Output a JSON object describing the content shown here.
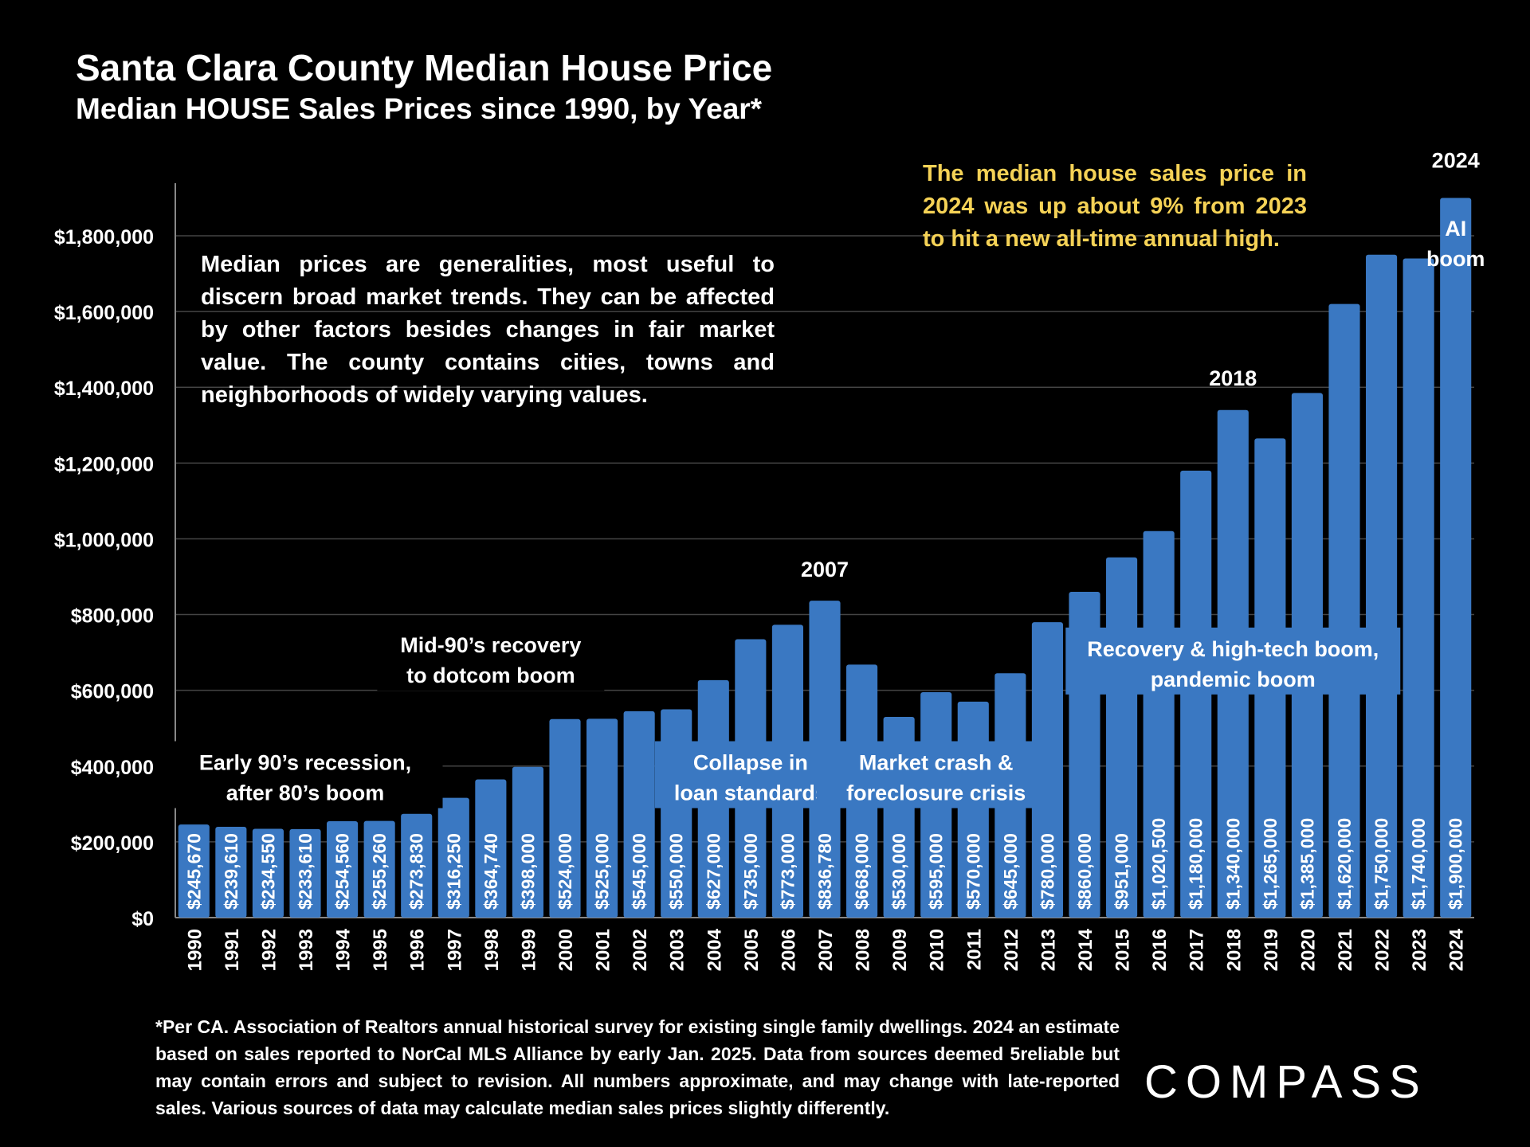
{
  "header": {
    "title": "Santa Clara County Median House Price",
    "subtitle": "Median HOUSE Sales Prices since 1990, by Year*"
  },
  "note": "Median prices are generalities, most useful to discern broad market trends. They can be affected by other factors besides changes in fair market value. The county contains cities, towns and neighborhoods of widely varying values.",
  "highlight": "The median house sales price in 2024 was up about 9% from 2023 to hit a new all-time annual high.",
  "footnote": "*Per CA. Association of Realtors annual historical survey for existing single family dwellings. 2024 an estimate based on sales reported to NorCal MLS Alliance by early Jan. 2025. Data from sources deemed 5reliable but may contain errors and subject to revision. All numbers approximate, and may change with late-reported sales. Various sources of data may calculate median sales prices slightly differently.",
  "logo": "COMPASS",
  "colors": {
    "bar": "#3a78c2",
    "highlight": "#f5d256",
    "background": "#000000",
    "grid": "#444444"
  },
  "chart_data": {
    "type": "bar",
    "title": "Santa Clara County Median House Price",
    "ylim": [
      0,
      1900000
    ],
    "yticks": [
      "$0",
      "$200,000",
      "$400,000",
      "$600,000",
      "$800,000",
      "$1,000,000",
      "$1,200,000",
      "$1,400,000",
      "$1,600,000",
      "$1,800,000"
    ],
    "ytick_values": [
      0,
      200000,
      400000,
      600000,
      800000,
      1000000,
      1200000,
      1400000,
      1600000,
      1800000
    ],
    "grid": true,
    "categories": [
      "1990",
      "1991",
      "1992",
      "1993",
      "1994",
      "1995",
      "1996",
      "1997",
      "1998",
      "1999",
      "2000",
      "2001",
      "2002",
      "2003",
      "2004",
      "2005",
      "2006",
      "2007",
      "2008",
      "2009",
      "2010",
      "2011",
      "2012",
      "2013",
      "2014",
      "2015",
      "2016",
      "2017",
      "2018",
      "2019",
      "2020",
      "2021",
      "2022",
      "2023",
      "2024"
    ],
    "values": [
      245670,
      239610,
      234550,
      233610,
      254560,
      255260,
      273830,
      316250,
      364740,
      398000,
      524000,
      525000,
      545000,
      550000,
      627000,
      735000,
      773000,
      836780,
      668000,
      530000,
      595000,
      570000,
      645000,
      780000,
      860000,
      951000,
      1020500,
      1180000,
      1340000,
      1265000,
      1385000,
      1620000,
      1750000,
      1740000,
      1900000
    ],
    "value_labels": [
      "$245,670",
      "$239,610",
      "$234,550",
      "$233,610",
      "$254,560",
      "$255,260",
      "$273,830",
      "$316,250",
      "$364,740",
      "$398,000",
      "$524,000",
      "$525,000",
      "$545,000",
      "$550,000",
      "$627,000",
      "$735,000",
      "$773,000",
      "$836,780",
      "$668,000",
      "$530,000",
      "$595,000",
      "$570,000",
      "$645,000",
      "$780,000",
      "$860,000",
      "$951,000",
      "$1,020,500",
      "$1,180,000",
      "$1,340,000",
      "$1,265,000",
      "$1,385,000",
      "$1,620,000",
      "$1,750,000",
      "$1,740,000",
      "$1,900,000"
    ],
    "annotations": [
      {
        "text": [
          "Early 90’s recession,",
          "after 80’s boom"
        ],
        "center_year": "1993",
        "value": 390000
      },
      {
        "text": [
          "Mid-90’s recovery",
          "to dotcom boom"
        ],
        "center_year": "1998",
        "value": 700000
      },
      {
        "text": [
          "Collapse in",
          "loan standards"
        ],
        "center_year": "2005",
        "value": 390000
      },
      {
        "text": [
          "Market crash &",
          "foreclosure crisis"
        ],
        "center_year": "2010",
        "value": 390000
      },
      {
        "text": [
          "Recovery & high-tech boom,",
          "pandemic boom"
        ],
        "center_year": "2018",
        "value": 690000
      },
      {
        "text": [
          "2007"
        ],
        "year": "2007",
        "value": 900000
      },
      {
        "text": [
          "2018"
        ],
        "year": "2018",
        "value": 1405000
      },
      {
        "text": [
          "2024"
        ],
        "year": "2024",
        "value": 1980000
      },
      {
        "text": [
          "AI",
          "boom"
        ],
        "year": "2024",
        "value": 1800000
      }
    ]
  }
}
